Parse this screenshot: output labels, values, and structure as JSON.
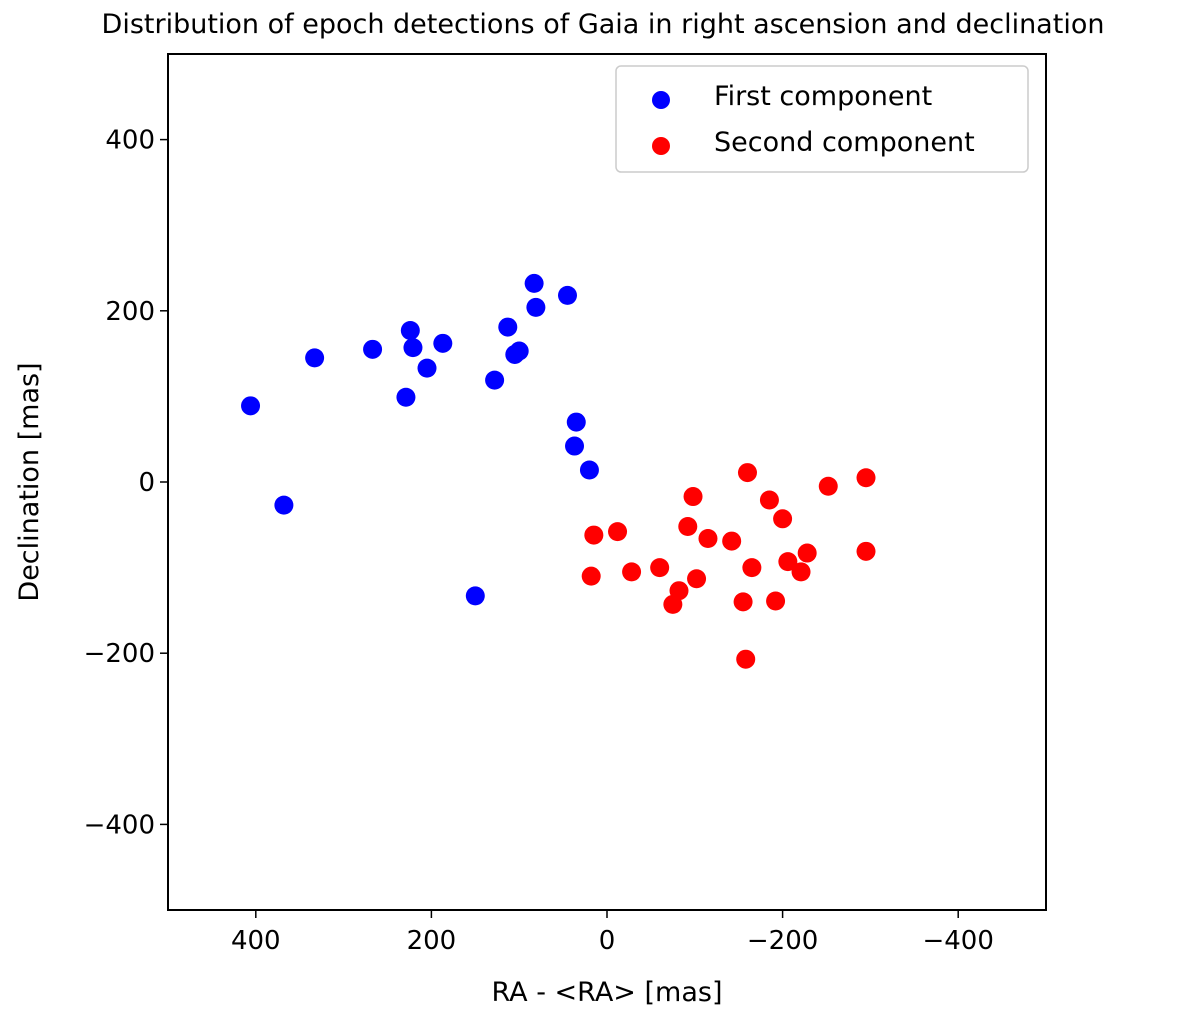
{
  "chart_data": {
    "type": "scatter",
    "title": "Distribution of epoch detections of Gaia in right ascension and declination",
    "xlabel": "RA - <RA> [mas]",
    "ylabel": "Declination [mas]",
    "xlim": [
      500,
      -500
    ],
    "ylim": [
      -500,
      500
    ],
    "xticks": [
      400,
      200,
      0,
      -200,
      -400
    ],
    "yticks": [
      400,
      200,
      0,
      -200,
      -400
    ],
    "xtick_labels": [
      "400",
      "200",
      "0",
      "−200",
      "−400"
    ],
    "ytick_labels": [
      "400",
      "200",
      "0",
      "−200",
      "−400"
    ],
    "grid": false,
    "legend_position": "top-right",
    "series": [
      {
        "name": "First component",
        "color": "#0000ff",
        "points": [
          {
            "x": 406,
            "y": 89
          },
          {
            "x": 368,
            "y": -27
          },
          {
            "x": 333,
            "y": 145
          },
          {
            "x": 267,
            "y": 155
          },
          {
            "x": 229,
            "y": 99
          },
          {
            "x": 224,
            "y": 177
          },
          {
            "x": 221,
            "y": 157
          },
          {
            "x": 205,
            "y": 133
          },
          {
            "x": 187,
            "y": 162
          },
          {
            "x": 128,
            "y": 119
          },
          {
            "x": 150,
            "y": -133
          },
          {
            "x": 113,
            "y": 181
          },
          {
            "x": 105,
            "y": 149
          },
          {
            "x": 100,
            "y": 153
          },
          {
            "x": 83,
            "y": 232
          },
          {
            "x": 81,
            "y": 204
          },
          {
            "x": 45,
            "y": 218
          },
          {
            "x": 35,
            "y": 70
          },
          {
            "x": 37,
            "y": 42
          },
          {
            "x": 20,
            "y": 14
          }
        ]
      },
      {
        "name": "Second component",
        "color": "#ff0000",
        "points": [
          {
            "x": 15,
            "y": -62
          },
          {
            "x": 18,
            "y": -110
          },
          {
            "x": -12,
            "y": -58
          },
          {
            "x": -28,
            "y": -105
          },
          {
            "x": -60,
            "y": -100
          },
          {
            "x": -75,
            "y": -143
          },
          {
            "x": -82,
            "y": -127
          },
          {
            "x": -92,
            "y": -52
          },
          {
            "x": -98,
            "y": -17
          },
          {
            "x": -102,
            "y": -113
          },
          {
            "x": -115,
            "y": -66
          },
          {
            "x": -142,
            "y": -69
          },
          {
            "x": -155,
            "y": -140
          },
          {
            "x": -160,
            "y": 11
          },
          {
            "x": -158,
            "y": -207
          },
          {
            "x": -165,
            "y": -100
          },
          {
            "x": -185,
            "y": -21
          },
          {
            "x": -192,
            "y": -139
          },
          {
            "x": -200,
            "y": -43
          },
          {
            "x": -206,
            "y": -93
          },
          {
            "x": -221,
            "y": -105
          },
          {
            "x": -228,
            "y": -83
          },
          {
            "x": -252,
            "y": -5
          },
          {
            "x": -295,
            "y": 5
          },
          {
            "x": -295,
            "y": -81
          }
        ]
      }
    ]
  }
}
